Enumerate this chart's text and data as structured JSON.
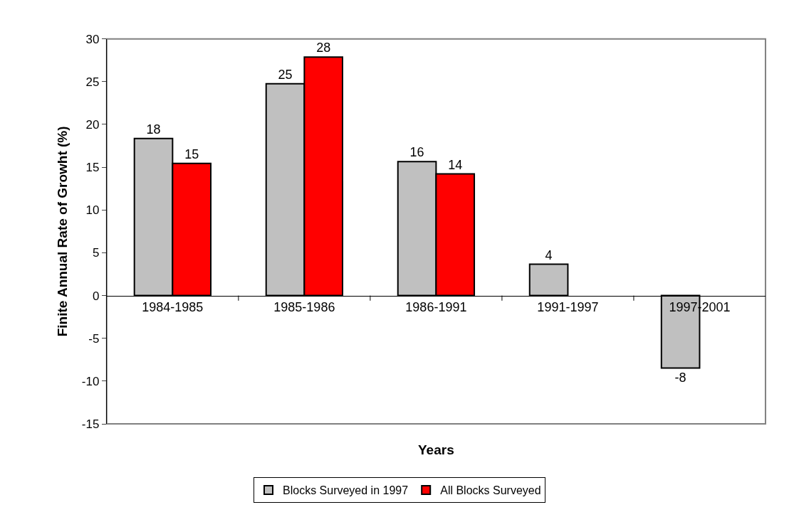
{
  "chart_data": {
    "type": "bar",
    "xlabel": "Years",
    "ylabel": "Finite Annual Rate of Growht (%)",
    "categories": [
      "1984-1985",
      "1985-1986",
      "1986-1991",
      "1991-1997",
      "1997-2001"
    ],
    "series": [
      {
        "name": "Blocks Surveyed in 1997",
        "color": "#c0c0c0",
        "values": [
          18.35,
          24.76,
          15.66,
          3.66,
          -8.48
        ],
        "value_labels": [
          "18",
          "25",
          "16",
          "4",
          "-8"
        ]
      },
      {
        "name": "All Blocks Surveyed",
        "color": "#ff0000",
        "values": [
          15.45,
          27.87,
          14.22,
          null,
          null
        ],
        "value_labels": [
          "15",
          "28",
          "14",
          null,
          null
        ]
      }
    ],
    "ylim": [
      -15,
      30
    ],
    "yticks": [
      -15,
      -10,
      -5,
      0,
      5,
      10,
      15,
      20,
      25,
      30
    ],
    "grid": false,
    "legend": "bottom"
  }
}
